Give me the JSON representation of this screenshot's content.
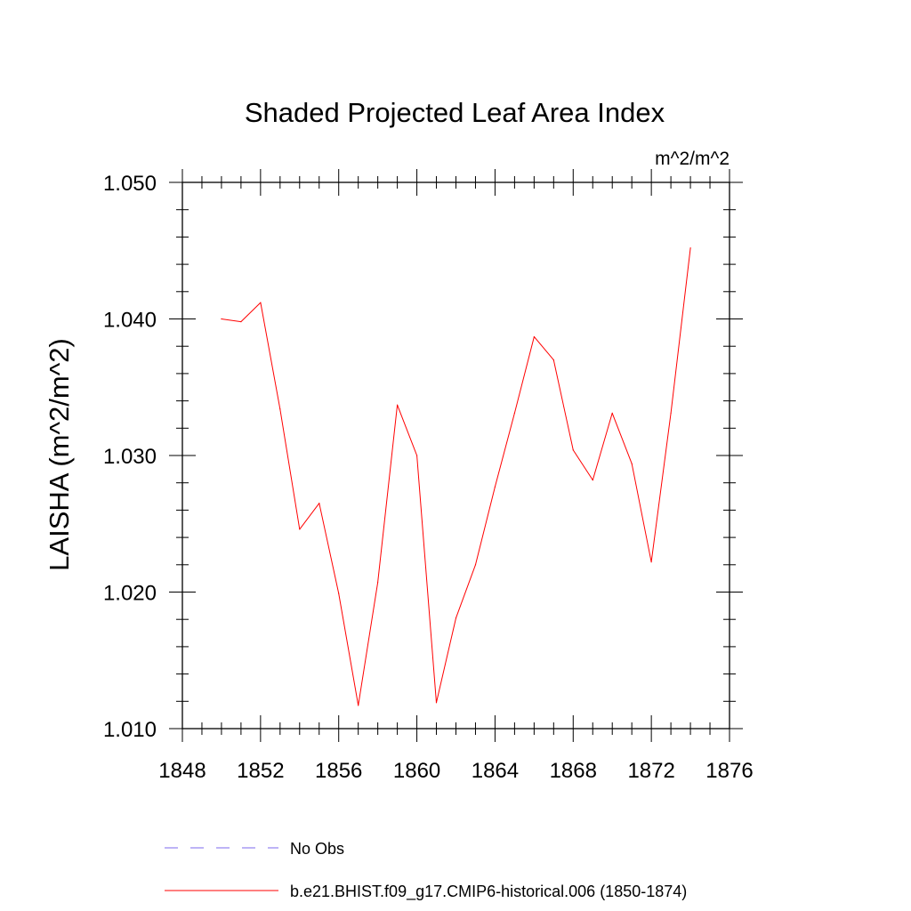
{
  "chart_data": {
    "type": "line",
    "title": "Shaded Projected Leaf Area Index",
    "units_label": "m^2/m^2",
    "ylabel": "LAISHA  (m^2/m^2)",
    "xlabel": "",
    "xlim": [
      1848,
      1876
    ],
    "ylim": [
      1.01,
      1.05
    ],
    "x_ticks": [
      1848,
      1852,
      1856,
      1860,
      1864,
      1868,
      1872,
      1876
    ],
    "x_tick_labels": [
      "1848",
      "1852",
      "1856",
      "1860",
      "1864",
      "1868",
      "1872",
      "1876"
    ],
    "y_ticks": [
      1.01,
      1.02,
      1.03,
      1.04,
      1.05
    ],
    "y_tick_labels": [
      "1.010",
      "1.020",
      "1.030",
      "1.040",
      "1.050"
    ],
    "grid": false,
    "legend_position": "bottom",
    "series": [
      {
        "name": "b.e21.BHIST.f09_g17.CMIP6-historical.006 (1850-1874)",
        "color": "#ff0000",
        "style": "solid",
        "x": [
          1850,
          1851,
          1852,
          1853,
          1854,
          1855,
          1856,
          1857,
          1858,
          1859,
          1860,
          1861,
          1862,
          1863,
          1864,
          1865,
          1866,
          1867,
          1868,
          1869,
          1870,
          1871,
          1872,
          1873,
          1874
        ],
        "values": [
          1.04,
          1.0398,
          1.0412,
          1.0334,
          1.0246,
          1.0265,
          1.0199,
          1.0117,
          1.0207,
          1.0337,
          1.03,
          1.0119,
          1.0181,
          1.022,
          1.0277,
          1.0331,
          1.0387,
          1.037,
          1.0304,
          1.0282,
          1.0331,
          1.0294,
          1.0222,
          1.0331,
          1.0452
        ]
      }
    ],
    "legend": [
      {
        "label": "No Obs",
        "color": "#7b68ee",
        "style": "dashed"
      },
      {
        "label": "b.e21.BHIST.f09_g17.CMIP6-historical.006 (1850-1874)",
        "color": "#ff0000",
        "style": "solid"
      }
    ]
  }
}
